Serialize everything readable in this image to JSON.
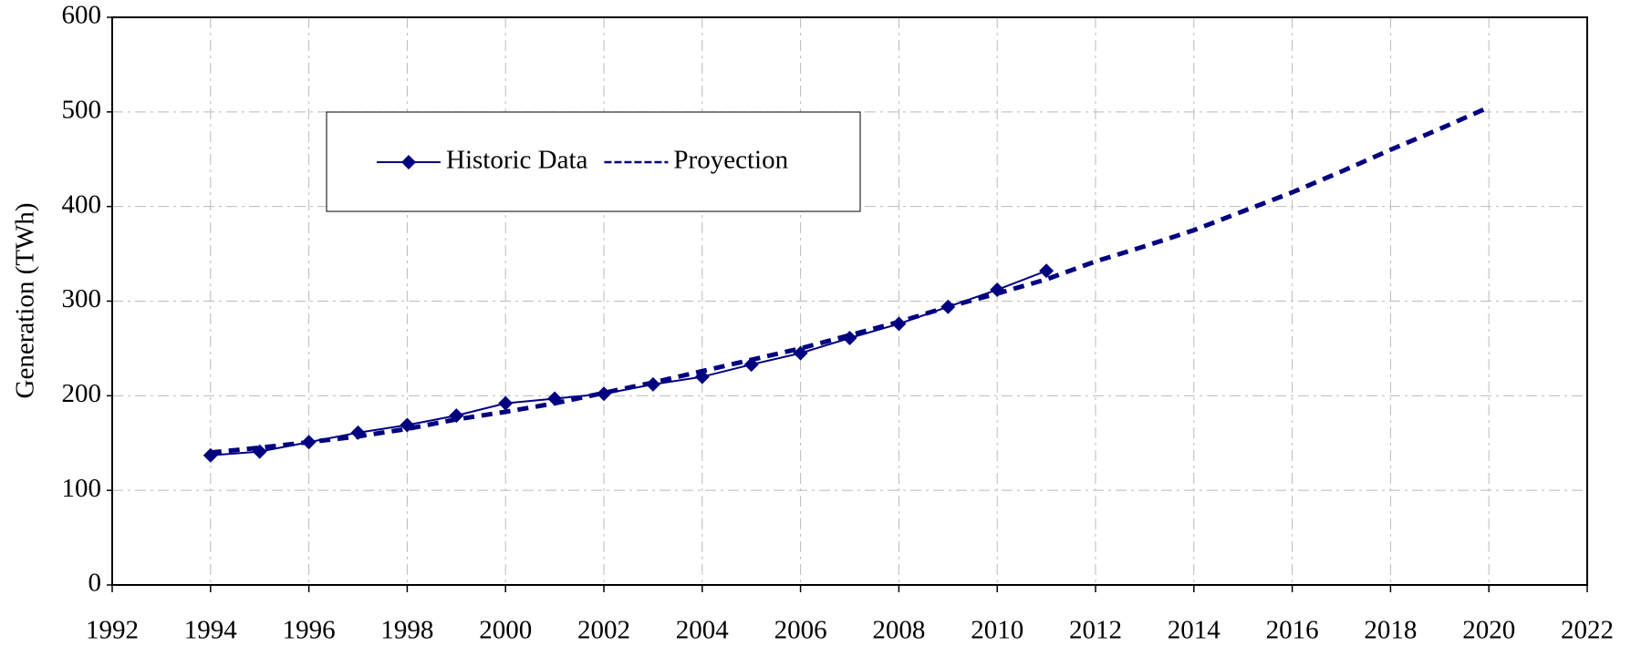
{
  "chart_data": {
    "type": "line",
    "y_label": "Generation (TWh)",
    "xlim": [
      1992,
      2022
    ],
    "xticks": [
      1992,
      1994,
      1996,
      1998,
      2000,
      2002,
      2004,
      2006,
      2008,
      2010,
      2012,
      2014,
      2016,
      2018,
      2020,
      2022
    ],
    "ylim": [
      0,
      600
    ],
    "yticks": [
      0,
      100,
      200,
      300,
      400,
      500,
      600
    ],
    "grid": true,
    "legend": "upper left",
    "series": [
      {
        "name": "Historic Data",
        "color": "#000080",
        "style": "solid",
        "marker": "diamond",
        "x": [
          1994,
          1995,
          1996,
          1997,
          1998,
          1999,
          2000,
          2001,
          2002,
          2003,
          2004,
          2005,
          2006,
          2007,
          2008,
          2009,
          2010,
          2011
        ],
        "values": [
          137,
          141,
          151,
          161,
          169,
          179,
          192,
          197,
          202,
          212,
          220,
          233,
          245,
          261,
          276,
          294,
          312,
          332
        ]
      },
      {
        "name": "Proyection",
        "color": "#000080",
        "style": "dashed",
        "x": [
          1994,
          1995,
          1996,
          1997,
          1998,
          1999,
          2000,
          2001,
          2002,
          2003,
          2004,
          2005,
          2006,
          2007,
          2008,
          2009,
          2010,
          2011,
          2012,
          2013,
          2014,
          2015,
          2016,
          2017,
          2018,
          2019,
          2020
        ],
        "values": [
          140,
          145,
          151,
          157,
          165,
          175,
          183,
          192,
          203,
          214,
          226,
          238,
          250,
          264,
          278,
          294,
          308,
          323,
          342,
          358,
          375,
          395,
          415,
          437,
          460,
          482,
          505
        ]
      }
    ]
  }
}
